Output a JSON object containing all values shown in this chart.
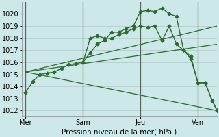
{
  "title": "",
  "xlabel": "Pression niveau de la mer( hPa )",
  "ylabel": "",
  "background_color": "#cce8e8",
  "grid_color": "#b0c8c8",
  "line_color": "#2d6a2d",
  "ylim": [
    1011.5,
    1021.0
  ],
  "yticks": [
    1012,
    1013,
    1014,
    1015,
    1016,
    1017,
    1018,
    1019,
    1020
  ],
  "xtick_positions": [
    0,
    72,
    144,
    216
  ],
  "xtick_labels": [
    "Mer",
    "Sam",
    "Jeu",
    "Ven"
  ],
  "vline_positions": [
    0,
    72,
    144,
    216
  ],
  "xlim": [
    -5,
    240
  ],
  "series": [
    {
      "x": [
        0,
        9,
        18,
        27,
        36,
        45,
        54,
        63,
        72,
        81,
        90,
        99,
        108,
        117,
        126,
        135,
        144,
        153,
        162,
        171,
        180,
        189,
        198,
        207,
        216,
        225,
        234,
        240
      ],
      "y": [
        1013.5,
        1014.4,
        1015.0,
        1015.1,
        1015.2,
        1015.5,
        1015.8,
        1015.9,
        1016.0,
        1016.8,
        1017.5,
        1017.8,
        1018.5,
        1018.5,
        1018.8,
        1019.0,
        1020.2,
        1020.3,
        1020.2,
        1020.5,
        1020.0,
        1019.8,
        1017.0,
        1016.3,
        1014.3,
        1014.3,
        1012.8,
        1012.0
      ],
      "has_markers": true
    },
    {
      "x": [
        72,
        81,
        90,
        99,
        108,
        117,
        126,
        135,
        144,
        153,
        162,
        171,
        180,
        189,
        198,
        207,
        216,
        225,
        234,
        240
      ],
      "y": [
        1016.0,
        1018.0,
        1018.2,
        1018.0,
        1018.0,
        1018.3,
        1018.5,
        1018.8,
        1019.0,
        1018.9,
        1019.0,
        1017.8,
        1019.0,
        1017.5,
        1017.0,
        1016.5,
        1014.3,
        1014.3,
        1012.8,
        1012.0
      ],
      "has_markers": true
    },
    {
      "x": [
        0,
        240
      ],
      "y": [
        1015.2,
        1019.0
      ],
      "has_markers": false
    },
    {
      "x": [
        0,
        240
      ],
      "y": [
        1015.2,
        1017.5
      ],
      "has_markers": false
    },
    {
      "x": [
        0,
        240
      ],
      "y": [
        1015.2,
        1012.0
      ],
      "has_markers": false
    }
  ]
}
